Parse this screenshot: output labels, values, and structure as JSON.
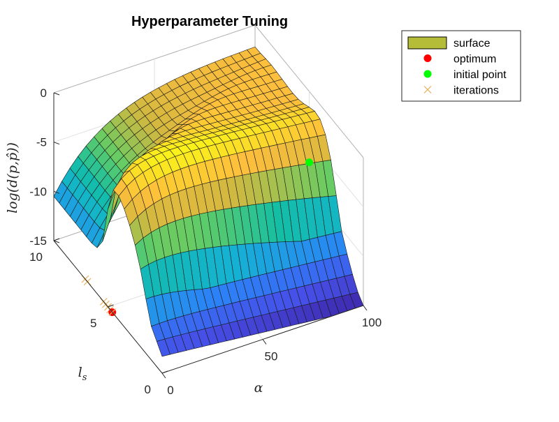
{
  "chart_data": {
    "type": "surface",
    "title": "Hyperparameter Tuning",
    "xlabel": "α",
    "ylabel": "l_s",
    "zlabel": "log(d(p,p̂))",
    "xlim": [
      0,
      100
    ],
    "ylim": [
      0,
      10
    ],
    "zlim": [
      -15,
      0
    ],
    "x_ticks": [
      "0",
      "50",
      "100"
    ],
    "y_ticks": [
      "0",
      "5",
      "10"
    ],
    "z_ticks": [
      "0",
      "-5",
      "-10",
      "-15"
    ],
    "grid": true,
    "legend_position": "top-right",
    "legend": [
      {
        "label": "surface",
        "kind": "patch",
        "color": "#b5bd38"
      },
      {
        "label": "optimum",
        "kind": "marker-o",
        "color": "#ff0000"
      },
      {
        "label": "initial point",
        "kind": "marker-o",
        "color": "#00ff00"
      },
      {
        "label": "iterations",
        "kind": "marker-x",
        "color": "#e8b86a"
      }
    ],
    "surface_grid": {
      "n_alpha": 26,
      "n_ls": 21
    },
    "optimum": {
      "alpha": 0,
      "ls": 4.6,
      "z": -15
    },
    "initial_point": {
      "alpha": 100,
      "ls": 5,
      "z": -7.2
    },
    "iterations": [
      {
        "alpha": 0,
        "ls": 7.1,
        "z": -15
      },
      {
        "alpha": 0,
        "ls": 6.9,
        "z": -15
      },
      {
        "alpha": 0,
        "ls": 5.4,
        "z": -15
      },
      {
        "alpha": 0,
        "ls": 5.2,
        "z": -15
      },
      {
        "alpha": 0,
        "ls": 5.0,
        "z": -15
      },
      {
        "alpha": 0,
        "ls": 4.8,
        "z": -15
      }
    ]
  }
}
